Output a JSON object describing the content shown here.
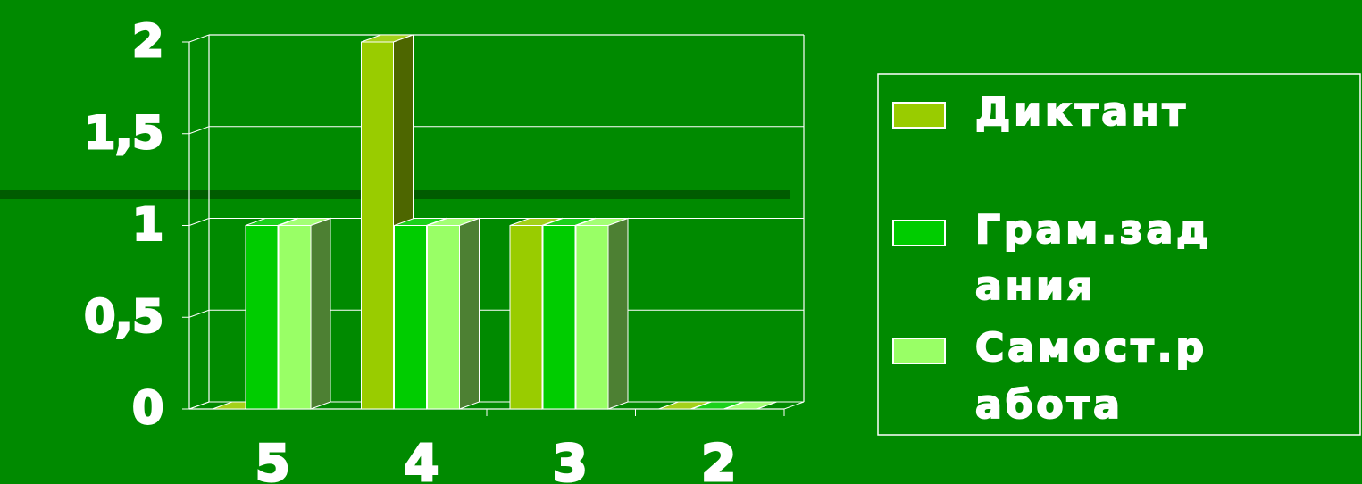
{
  "chart_data": {
    "type": "bar",
    "categories": [
      "5",
      "4",
      "3",
      "2"
    ],
    "series": [
      {
        "name": "Диктант",
        "values": [
          0,
          2,
          1,
          0
        ],
        "color": "#99cc00"
      },
      {
        "name": "Грам.задания",
        "values": [
          1,
          1,
          1,
          0
        ],
        "color": "#00cc00"
      },
      {
        "name": "Самост.работа",
        "values": [
          1,
          1,
          1,
          0
        ],
        "color": "#99ff66"
      }
    ],
    "y_ticks": [
      "0",
      "0,5",
      "1",
      "1,5",
      "2"
    ],
    "ylim": [
      0,
      2
    ],
    "grid": true,
    "legend_position": "right",
    "legend_lines": [
      [
        "Диктант"
      ],
      [
        "Грам.зад",
        "ания"
      ],
      [
        "Самост.р",
        "абота"
      ]
    ]
  },
  "colors": {
    "background": "#008a00",
    "wall_line": "#ffffff",
    "bar_outline": "#ffffff",
    "dark_band": "#004d00"
  }
}
